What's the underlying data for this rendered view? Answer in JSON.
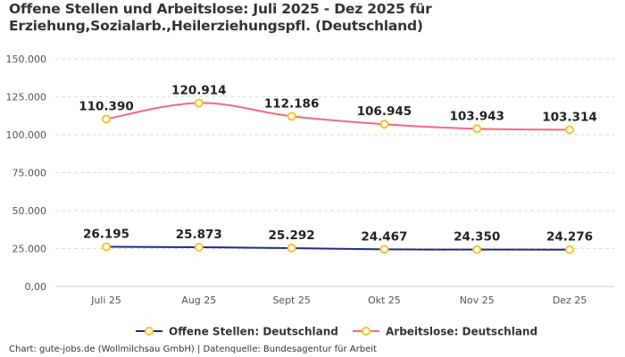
{
  "title": "Offene Stellen und Arbeitslose: Juli 2025 - Dez 2025 für Erziehung,Sozialarb.,Heilerziehungspfl. (Deutschland)",
  "credit": "Chart: gute-jobs.de (Wollmilchsau GmbH) | Datenquelle: Bundesagentur für Arbeit",
  "chart_data": {
    "type": "line",
    "title": "Offene Stellen und Arbeitslose: Juli 2025 - Dez 2025 für Erziehung,Sozialarb.,Heilerziehungspfl. (Deutschland)",
    "categories": [
      "Juli 25",
      "Aug 25",
      "Sept 25",
      "Okt 25",
      "Nov 25",
      "Dez 25"
    ],
    "ylim": [
      0,
      150000
    ],
    "yticks": [
      0,
      25000,
      50000,
      75000,
      100000,
      125000,
      150000
    ],
    "ytick_labels": [
      "0,00",
      "25.000",
      "50.000",
      "75.000",
      "100.000",
      "125.000",
      "150.000"
    ],
    "grid": true,
    "legend_position": "bottom",
    "series": [
      {
        "name": "Offene Stellen: Deutschland",
        "color": "#1f2d8a",
        "values": [
          26195,
          25873,
          25292,
          24467,
          24350,
          24276
        ],
        "labels": [
          "26.195",
          "25.873",
          "25.292",
          "24.467",
          "24.350",
          "24.276"
        ]
      },
      {
        "name": "Arbeitslose: Deutschland",
        "color": "#f7677f",
        "values": [
          110390,
          120914,
          112186,
          106945,
          103943,
          103314
        ],
        "labels": [
          "110.390",
          "120.914",
          "112.186",
          "106.945",
          "103.943",
          "103.314"
        ]
      }
    ],
    "marker_color": "#f5c431"
  }
}
